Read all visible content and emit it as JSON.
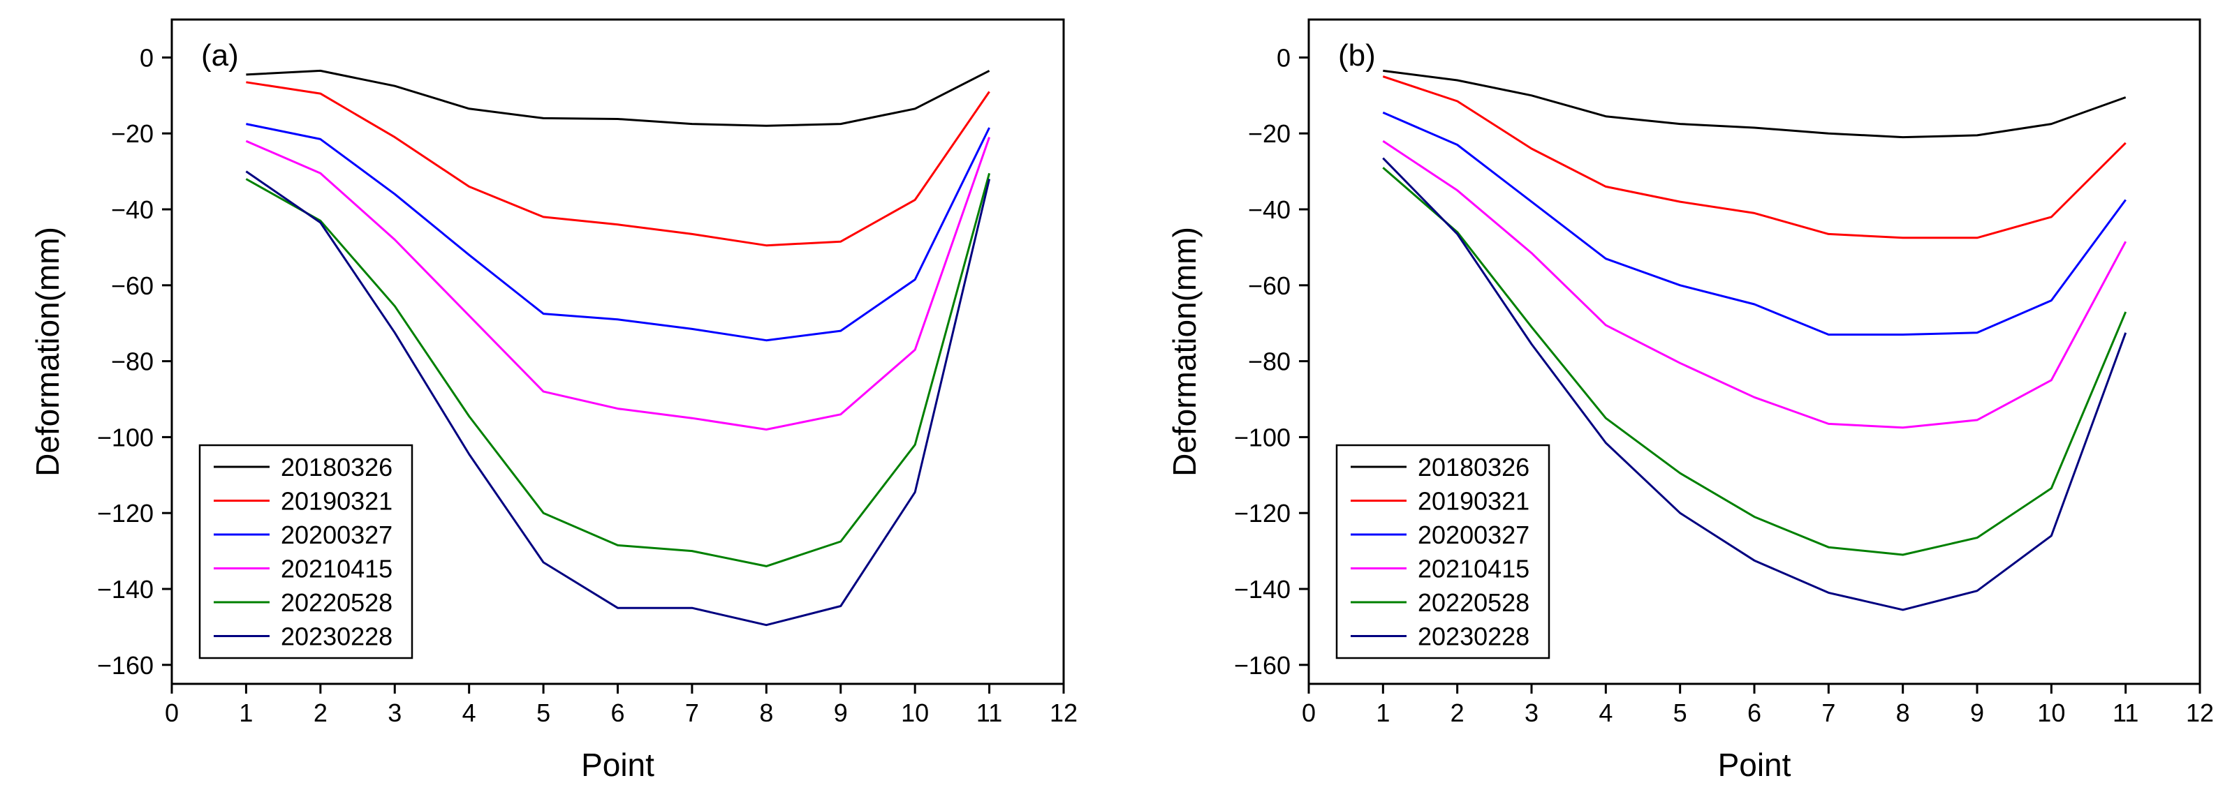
{
  "chart_data": [
    {
      "type": "line",
      "panel_label": "(a)",
      "xlabel": "Point",
      "ylabel": "Deformation(mm)",
      "xlim": [
        0,
        12
      ],
      "ylim": [
        -165,
        10
      ],
      "xticks": [
        0,
        1,
        2,
        3,
        4,
        5,
        6,
        7,
        8,
        9,
        10,
        11,
        12
      ],
      "yticks": [
        0,
        -20,
        -40,
        -60,
        -80,
        -100,
        -120,
        -140,
        -160
      ],
      "legend_position": "lower-left",
      "grid": false,
      "x": [
        1,
        2,
        3,
        4,
        5,
        6,
        7,
        8,
        9,
        10,
        11
      ],
      "series": [
        {
          "name": "20180326",
          "color": "#000000",
          "values": [
            -4.5,
            -3.5,
            -7.5,
            -13.5,
            -16,
            -16.2,
            -17.5,
            -18,
            -17.5,
            -13.5,
            -3.5
          ]
        },
        {
          "name": "20190321",
          "color": "#ff0000",
          "values": [
            -6.5,
            -9.5,
            -21,
            -34,
            -42,
            -44,
            -46.5,
            -49.5,
            -48.5,
            -37.5,
            -9
          ]
        },
        {
          "name": "20200327",
          "color": "#0000ff",
          "values": [
            -17.5,
            -21.5,
            -36,
            -52,
            -67.5,
            -69,
            -71.5,
            -74.5,
            -72,
            -58.5,
            -18.5
          ]
        },
        {
          "name": "20210415",
          "color": "#ff00ff",
          "values": [
            -22,
            -30.5,
            -48,
            -68,
            -88,
            -92.5,
            -95,
            -98,
            -94,
            -77,
            -21
          ]
        },
        {
          "name": "20220528",
          "color": "#008000",
          "values": [
            -32,
            -43,
            -65.5,
            -94.5,
            -120,
            -128.5,
            -130,
            -134,
            -127.5,
            -102,
            -30.5
          ]
        },
        {
          "name": "20230228",
          "color": "#000080",
          "values": [
            -30,
            -43.5,
            -72.5,
            -104.5,
            -133,
            -145,
            -145,
            -149.5,
            -144.5,
            -114.5,
            -32
          ]
        }
      ]
    },
    {
      "type": "line",
      "panel_label": "(b)",
      "xlabel": "Point",
      "ylabel": "Deformation(mm)",
      "xlim": [
        0,
        12
      ],
      "ylim": [
        -165,
        10
      ],
      "xticks": [
        0,
        1,
        2,
        3,
        4,
        5,
        6,
        7,
        8,
        9,
        10,
        11,
        12
      ],
      "yticks": [
        0,
        -20,
        -40,
        -60,
        -80,
        -100,
        -120,
        -140,
        -160
      ],
      "legend_position": "lower-left",
      "grid": false,
      "x": [
        1,
        2,
        3,
        4,
        5,
        6,
        7,
        8,
        9,
        10,
        11
      ],
      "series": [
        {
          "name": "20180326",
          "color": "#000000",
          "values": [
            -3.5,
            -6,
            -10,
            -15.5,
            -17.5,
            -18.5,
            -20,
            -21,
            -20.5,
            -17.5,
            -10.5
          ]
        },
        {
          "name": "20190321",
          "color": "#ff0000",
          "values": [
            -5,
            -11.5,
            -24,
            -34,
            -38,
            -41,
            -46.5,
            -47.5,
            -47.5,
            -42,
            -22.5
          ]
        },
        {
          "name": "20200327",
          "color": "#0000ff",
          "values": [
            -14.5,
            -23,
            -38,
            -53,
            -60,
            -65,
            -73,
            -73,
            -72.5,
            -64,
            -37.5
          ]
        },
        {
          "name": "20210415",
          "color": "#ff00ff",
          "values": [
            -22,
            -35,
            -51.5,
            -70.5,
            -80.5,
            -89.5,
            -96.5,
            -97.5,
            -95.5,
            -85,
            -48.5
          ]
        },
        {
          "name": "20220528",
          "color": "#008000",
          "values": [
            -29,
            -46,
            -71,
            -95,
            -109.5,
            -121,
            -129,
            -131,
            -126.5,
            -113.5,
            -67
          ]
        },
        {
          "name": "20230228",
          "color": "#000080",
          "values": [
            -26.5,
            -46.5,
            -75.5,
            -101.5,
            -120,
            -132.5,
            -141,
            -145.5,
            -140.5,
            -126,
            -72.5
          ]
        }
      ]
    }
  ]
}
